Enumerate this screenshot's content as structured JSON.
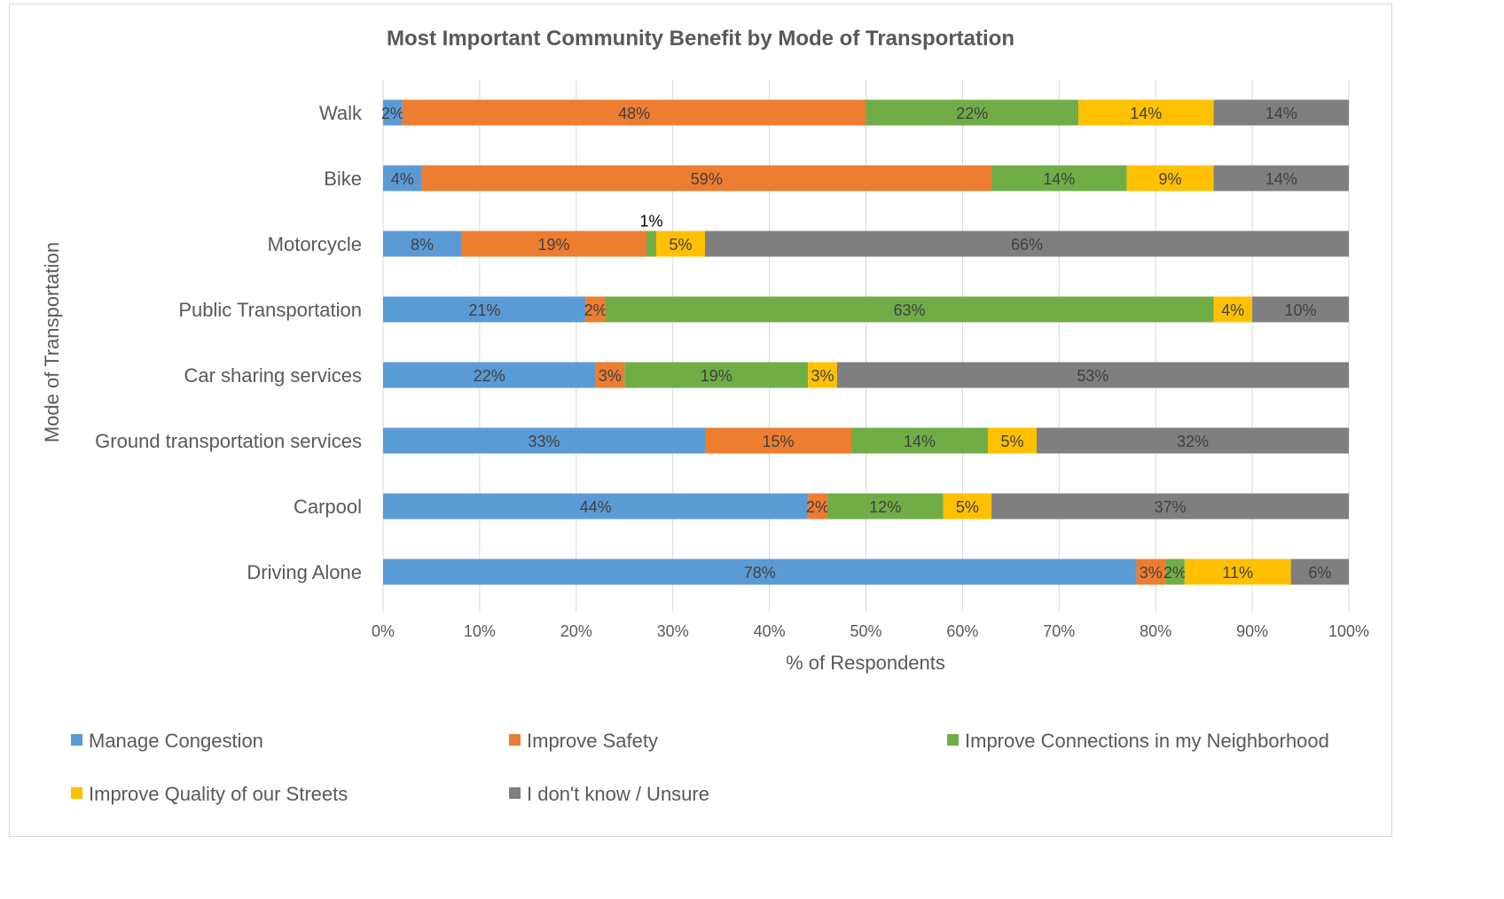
{
  "chart_data": {
    "type": "bar",
    "orientation": "horizontal",
    "stacked": "percent",
    "title": "Most Important Community Benefit by Mode of Transportation",
    "xlabel": "% of Respondents",
    "ylabel": "Mode of Transportation",
    "xlim": [
      0,
      100
    ],
    "xticks": [
      "0%",
      "10%",
      "20%",
      "30%",
      "40%",
      "50%",
      "60%",
      "70%",
      "80%",
      "90%",
      "100%"
    ],
    "grid": "vertical",
    "legend_position": "bottom",
    "categories": [
      "Walk",
      "Bike",
      "Motorcycle",
      "Public Transportation",
      "Car sharing services",
      "Ground transportation services",
      "Carpool",
      "Driving Alone"
    ],
    "series": [
      {
        "name": "Manage Congestion",
        "color": "#5b9bd5",
        "values": [
          2,
          4,
          8,
          21,
          22,
          33,
          44,
          78
        ],
        "labels": [
          "2%",
          "4%",
          "8%",
          "21%",
          "22%",
          "33%",
          "44%",
          "78%"
        ]
      },
      {
        "name": "Improve Safety",
        "color": "#ed7d31",
        "values": [
          48,
          59,
          19,
          2,
          3,
          15,
          2,
          3
        ],
        "labels": [
          "48%",
          "59%",
          "19%",
          "2%",
          "3%",
          "15%",
          "2%",
          "3%"
        ]
      },
      {
        "name": "Improve Connections in my Neighborhood",
        "color": "#70ad47",
        "values": [
          22,
          14,
          1,
          63,
          19,
          14,
          12,
          2
        ],
        "labels": [
          "22%",
          "14%",
          "1%",
          "63%",
          "19%",
          "14%",
          "12%",
          "2%"
        ]
      },
      {
        "name": "Improve Quality of our Streets",
        "color": "#ffc000",
        "values": [
          14,
          9,
          5,
          4,
          3,
          5,
          5,
          11
        ],
        "labels": [
          "14%",
          "9%",
          "5%",
          "4%",
          "3%",
          "5%",
          "5%",
          "11%"
        ]
      },
      {
        "name": "I don't know / Unsure",
        "color": "#7f7f7f",
        "values": [
          14,
          14,
          66,
          10,
          53,
          32,
          37,
          6
        ],
        "labels": [
          "14%",
          "14%",
          "66%",
          "10%",
          "53%",
          "32%",
          "37%",
          "6%"
        ]
      }
    ]
  }
}
